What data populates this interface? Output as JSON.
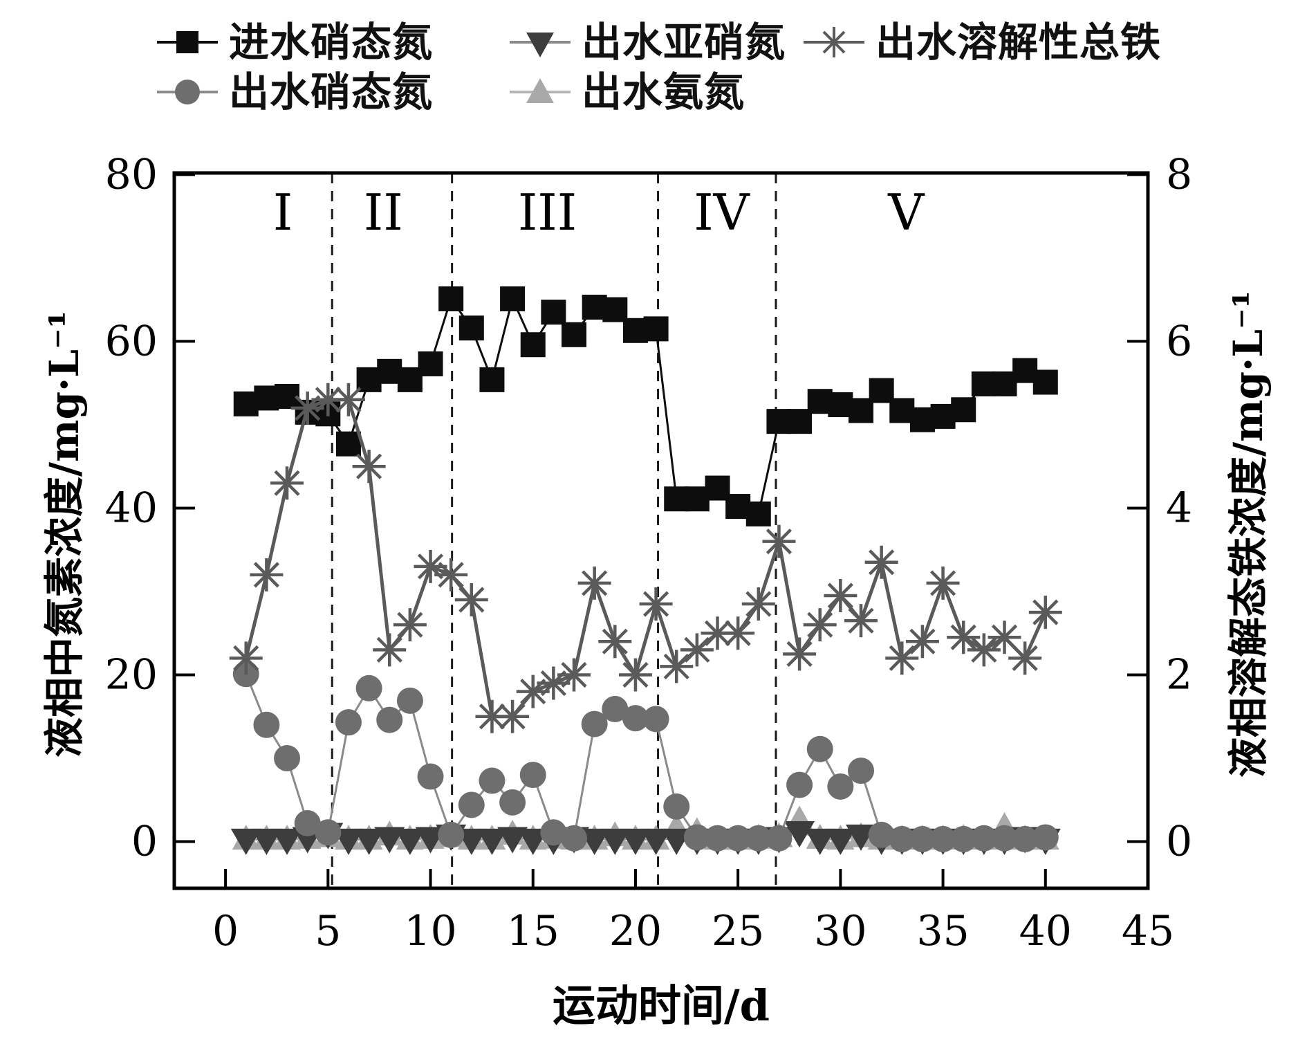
{
  "figure": {
    "kind": "scientific line chart with dual y axes",
    "background": "#ffffff"
  },
  "legend": {
    "slots": [
      "influent_nitrate",
      "effluent_nitrite",
      "effluent_dissolved_iron",
      "effluent_nitrate",
      "effluent_ammonia"
    ]
  },
  "chart_data": {
    "type": "line",
    "xlabel": "运动时间/d",
    "ylabel_left": "液相中氮素浓度/mg·L⁻¹",
    "ylabel_right": "液相溶解态铁浓度/mg·L⁻¹",
    "xlim": [
      -2.5,
      45
    ],
    "ylim_left": [
      -5.6,
      80.2
    ],
    "ylim_right": [
      -0.56,
      8.02
    ],
    "x_ticks": [
      0,
      5,
      10,
      15,
      20,
      25,
      30,
      35,
      40,
      45
    ],
    "y_ticks_left": [
      0,
      20,
      40,
      60,
      80
    ],
    "y_ticks_right": [
      0,
      2,
      4,
      6,
      8
    ],
    "grid": false,
    "legend_position": "top",
    "x": [
      1,
      2,
      3,
      4,
      5,
      6,
      7,
      8,
      9,
      10,
      11,
      12,
      13,
      14,
      15,
      16,
      17,
      18,
      19,
      20,
      21,
      22,
      23,
      24,
      25,
      26,
      27,
      28,
      29,
      30,
      31,
      32,
      33,
      34,
      35,
      36,
      37,
      38,
      39,
      40
    ],
    "series": [
      {
        "key": "influent_nitrate",
        "label": "进水硝态氮",
        "marker": "square",
        "axis": "left",
        "color": "#0d0d0d",
        "line_color": "#0d0d0d",
        "values": [
          52.5,
          53.2,
          53.4,
          51.5,
          51.3,
          47.7,
          55.4,
          56.4,
          55.4,
          57.3,
          65.1,
          61.6,
          55.4,
          65.1,
          59.6,
          63.5,
          60.8,
          64.1,
          63.8,
          61.3,
          61.5,
          41.1,
          41.1,
          42.4,
          40.2,
          39.3,
          50.4,
          50.4,
          52.8,
          52.4,
          51.7,
          54.1,
          51.7,
          50.6,
          51.0,
          51.8,
          54.9,
          54.9,
          56.5,
          55.1
        ]
      },
      {
        "key": "effluent_nitrate",
        "label": "出水硝态氮",
        "marker": "circle",
        "axis": "left",
        "color": "#6e6e6e",
        "line_color": "#8a8a8a",
        "values": [
          20.1,
          14.0,
          10.0,
          2.2,
          1.1,
          14.3,
          18.4,
          14.6,
          16.9,
          7.8,
          0.8,
          4.4,
          7.3,
          4.7,
          8.0,
          1.1,
          0.4,
          14.1,
          15.9,
          14.8,
          14.7,
          4.2,
          0.5,
          0.4,
          0.4,
          0.4,
          0.4,
          6.8,
          11.1,
          6.6,
          8.5,
          0.8,
          0.3,
          0.3,
          0.3,
          0.3,
          0.4,
          0.4,
          0.3,
          0.5
        ]
      },
      {
        "key": "effluent_nitrite",
        "label": "出水亚硝氮",
        "marker": "triangle-down",
        "axis": "left",
        "color": "#3d3d3d",
        "line_color": "#9a9a9a",
        "values": [
          0.3,
          0.3,
          0.3,
          0.5,
          1.0,
          0.3,
          0.3,
          0.5,
          0.3,
          0.5,
          0.8,
          0.3,
          0.3,
          0.5,
          0.3,
          0.3,
          0.5,
          0.3,
          0.3,
          0.3,
          0.3,
          0.3,
          0.3,
          0.3,
          0.3,
          0.3,
          0.5,
          1.2,
          0.3,
          0.3,
          0.8,
          0.3,
          0.3,
          0.3,
          0.3,
          0.3,
          0.3,
          0.3,
          0.5,
          0.3
        ]
      },
      {
        "key": "effluent_ammonia",
        "label": "出水氨氮",
        "marker": "triangle-up",
        "axis": "left",
        "color": "#a8a8a8",
        "line_color": "#b5b5b5",
        "values": [
          0.2,
          0.2,
          0.2,
          0.3,
          0.5,
          0.2,
          0.2,
          0.7,
          0.2,
          0.3,
          0.5,
          0.2,
          0.2,
          0.8,
          0.2,
          0.3,
          0.2,
          0.2,
          0.6,
          0.2,
          0.2,
          1.6,
          1.1,
          0.2,
          0.2,
          0.3,
          0.5,
          2.5,
          0.3,
          0.2,
          0.5,
          0.2,
          0.2,
          0.2,
          0.2,
          0.3,
          0.2,
          1.7,
          0.2,
          0.2
        ]
      },
      {
        "key": "effluent_dissolved_iron",
        "label": "出水溶解性总铁",
        "marker": "asterisk",
        "axis": "right",
        "color": "#5a5a5a",
        "line_color": "#5a5a5a",
        "values": [
          2.2,
          3.2,
          4.3,
          5.2,
          5.3,
          5.3,
          4.5,
          2.3,
          2.6,
          3.3,
          3.2,
          2.9,
          1.5,
          1.5,
          1.8,
          1.9,
          2.0,
          3.1,
          2.4,
          2.0,
          2.85,
          2.1,
          2.3,
          2.5,
          2.5,
          2.85,
          3.6,
          2.25,
          2.6,
          2.95,
          2.65,
          3.35,
          2.2,
          2.4,
          3.1,
          2.45,
          2.3,
          2.45,
          2.2,
          2.75
        ]
      }
    ],
    "phases": {
      "dividers_x": [
        5.2,
        11.05,
        21.1,
        26.85
      ],
      "labels": [
        {
          "text": "I",
          "x": 2.8
        },
        {
          "text": "II",
          "x": 7.7
        },
        {
          "text": "III",
          "x": 15.7
        },
        {
          "text": "IV",
          "x": 24.2
        },
        {
          "text": "V",
          "x": 33.2
        }
      ]
    }
  }
}
